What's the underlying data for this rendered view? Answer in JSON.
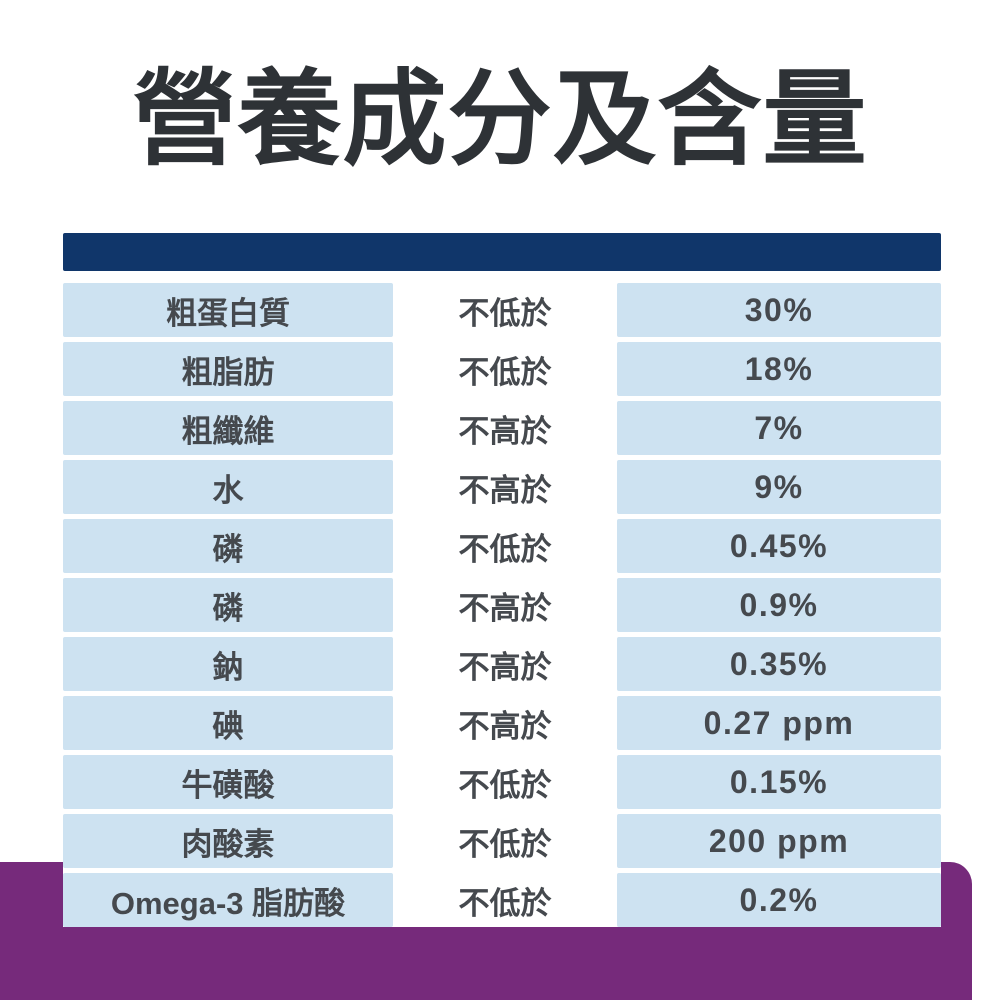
{
  "title": {
    "text": "營養成分及含量"
  },
  "colors": {
    "title_text": "#2e3236",
    "divider_navy": "#10366a",
    "row_blue": "#cde2f1",
    "row_text": "#45494e",
    "footer_purple": "#762a7b",
    "page_background": "#ffffff"
  },
  "table": {
    "rows": [
      {
        "name": "粗蛋白質",
        "condition": "不低於",
        "value": "30%"
      },
      {
        "name": "粗脂肪",
        "condition": "不低於",
        "value": "18%"
      },
      {
        "name": "粗纖維",
        "condition": "不高於",
        "value": "7%"
      },
      {
        "name": "水",
        "condition": "不高於",
        "value": "9%"
      },
      {
        "name": "磷",
        "condition": "不低於",
        "value": "0.45%"
      },
      {
        "name": "磷",
        "condition": "不高於",
        "value": "0.9%"
      },
      {
        "name": "鈉",
        "condition": "不高於",
        "value": "0.35%"
      },
      {
        "name": "碘",
        "condition": "不高於",
        "value": "0.27 ppm"
      },
      {
        "name": "牛磺酸",
        "condition": "不低於",
        "value": "0.15%"
      },
      {
        "name": "肉酸素",
        "condition": "不低於",
        "value": "200 ppm"
      },
      {
        "name": "Omega-3 脂肪酸",
        "condition": "不低於",
        "value": "0.2%"
      }
    ]
  }
}
